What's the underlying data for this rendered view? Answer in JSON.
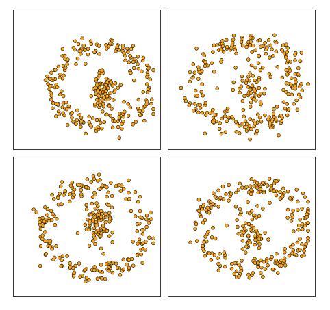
{
  "colors": {
    "point_fill": "#f5a623",
    "point_stroke": "#2b1d00",
    "frame": "#3a3a3a",
    "background": "#ffffff"
  },
  "chart_data": [
    {
      "type": "scatter",
      "grid": false,
      "legend": "none",
      "title": "",
      "xlabel": "",
      "ylabel": "",
      "xlim": [
        0,
        1
      ],
      "ylim": [
        0,
        1
      ],
      "generator": {
        "seed": 11,
        "count": 300,
        "cx": 0.6,
        "cy": 0.55,
        "rx": 0.34,
        "ry": 0.31,
        "tilt": 0.06,
        "phase": 0.0,
        "core_weight": 0.33,
        "core_x": 0.61,
        "core_y": 0.6,
        "core_spread": 0.06
      }
    },
    {
      "type": "scatter",
      "grid": false,
      "legend": "none",
      "title": "",
      "xlabel": "",
      "ylabel": "",
      "xlim": [
        0,
        1
      ],
      "ylim": [
        0,
        1
      ],
      "generator": {
        "seed": 23,
        "count": 300,
        "cx": 0.53,
        "cy": 0.54,
        "rx": 0.37,
        "ry": 0.33,
        "tilt": -0.08,
        "phase": 0.65,
        "core_weight": 0.18,
        "core_x": 0.57,
        "core_y": 0.55,
        "core_spread": 0.08
      }
    },
    {
      "type": "scatter",
      "grid": false,
      "legend": "none",
      "title": "",
      "xlabel": "",
      "ylabel": "",
      "xlim": [
        0,
        1
      ],
      "ylim": [
        0,
        1
      ],
      "generator": {
        "seed": 37,
        "count": 300,
        "cx": 0.55,
        "cy": 0.52,
        "rx": 0.36,
        "ry": 0.34,
        "tilt": 0.12,
        "phase": 1.2,
        "core_weight": 0.3,
        "core_x": 0.59,
        "core_y": 0.48,
        "core_spread": 0.07
      }
    },
    {
      "type": "scatter",
      "grid": false,
      "legend": "none",
      "title": "",
      "xlabel": "",
      "ylabel": "",
      "xlim": [
        0,
        1
      ],
      "ylim": [
        0,
        1
      ],
      "generator": {
        "seed": 51,
        "count": 300,
        "cx": 0.58,
        "cy": 0.5,
        "rx": 0.38,
        "ry": 0.32,
        "tilt": -0.05,
        "phase": 2.1,
        "core_weight": 0.22,
        "core_x": 0.56,
        "core_y": 0.52,
        "core_spread": 0.08
      }
    }
  ]
}
